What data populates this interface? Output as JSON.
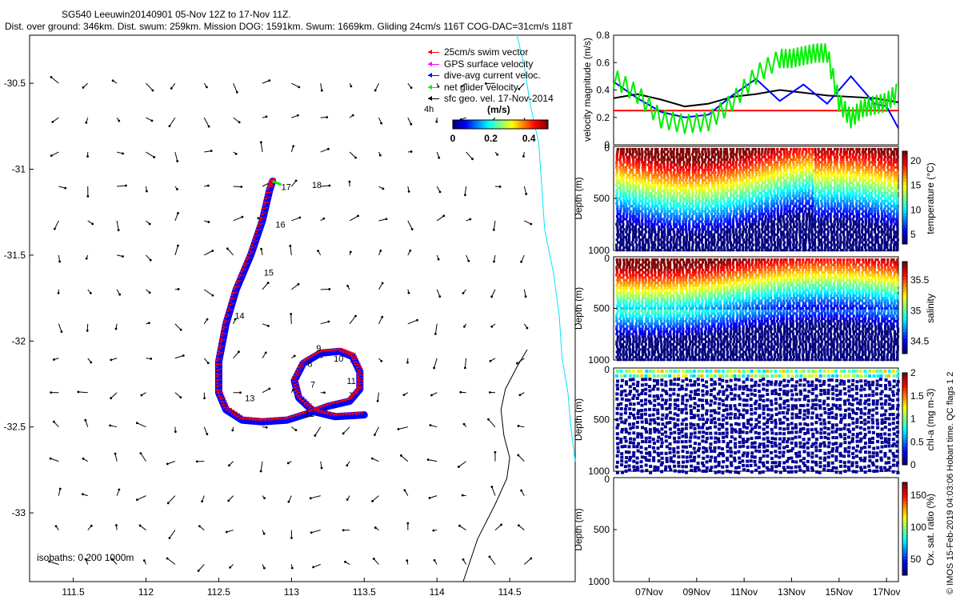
{
  "title": {
    "line1": "SG540 Leeuwin20140901 05-Nov 12Z to 17-Nov 11Z.",
    "line2": "Dist. over ground: 346km. Dist. swum: 259km. Mission DOG: 1591km. Swum: 1669km. Gliding 24cm/s 116T COG-DAC=31cm/s 118T"
  },
  "side_note": "© IMOS 15-Feb-2019 04:03:06 Hobart time. QC flags 1  2",
  "colors": {
    "swim": "#ff0000",
    "gps": "#ff00ff",
    "dac": "#0000ff",
    "net": "#00ee00",
    "geo": "#000000",
    "coast": "#00e5ff",
    "isobath": "#000000"
  },
  "chart_data": [
    {
      "type": "scatter",
      "panel": "map",
      "xlim": [
        111.2,
        114.95
      ],
      "ylim": [
        -33.4,
        -30.22
      ],
      "xticks": [
        "111.5",
        "112",
        "112.5",
        "113",
        "113.5",
        "114",
        "114.5"
      ],
      "yticks": [
        "-30.5",
        "-31",
        "-31.5",
        "-32",
        "-32.5",
        "-33"
      ],
      "legend": {
        "placement": "top-right",
        "entries": [
          "25cm/s swim vector",
          "GPS surface velocity",
          "dive-avg current veloc.",
          "net glider velocity",
          "sfc geo. vel. 17-Nov-2014"
        ]
      },
      "colorbar": {
        "label_left": "4h",
        "unit": "(m/s)",
        "ticks": [
          "0",
          "0.2",
          "0.4"
        ],
        "range": [
          0,
          0.5
        ]
      },
      "isobath_note": "isobaths: 0   200  1000m",
      "track": {
        "lon": [
          112.87,
          112.85,
          112.8,
          112.72,
          112.62,
          112.55,
          112.5,
          112.5,
          112.55,
          112.66,
          112.8,
          112.97,
          113.12,
          113.25,
          113.4,
          113.47,
          113.47,
          113.42,
          113.33,
          113.2,
          113.08,
          113.02,
          113.05,
          113.15,
          113.3,
          113.5
        ],
        "lat": [
          -31.07,
          -31.12,
          -31.3,
          -31.5,
          -31.7,
          -31.9,
          -32.12,
          -32.3,
          -32.4,
          -32.46,
          -32.47,
          -32.46,
          -32.42,
          -32.38,
          -32.35,
          -32.28,
          -32.18,
          -32.09,
          -32.06,
          -32.07,
          -32.13,
          -32.23,
          -32.33,
          -32.41,
          -32.44,
          -32.43
        ]
      },
      "day_labels": [
        {
          "label": "17",
          "lon": 112.93,
          "lat": -31.12
        },
        {
          "label": "18",
          "lon": 113.14,
          "lat": -31.11
        },
        {
          "label": "16",
          "lon": 112.89,
          "lat": -31.34
        },
        {
          "label": "15",
          "lon": 112.81,
          "lat": -31.62
        },
        {
          "label": "14",
          "lon": 112.61,
          "lat": -31.87
        },
        {
          "label": "13",
          "lon": 112.68,
          "lat": -32.35
        },
        {
          "label": "12",
          "lon": 113.09,
          "lat": -32.44
        },
        {
          "label": "11",
          "lon": 113.38,
          "lat": -32.25
        },
        {
          "label": "10",
          "lon": 113.29,
          "lat": -32.12
        },
        {
          "label": "9",
          "lon": 113.17,
          "lat": -32.06
        },
        {
          "label": "8",
          "lon": 113.11,
          "lat": -32.15
        },
        {
          "label": "7",
          "lon": 113.13,
          "lat": -32.27
        }
      ],
      "coast": {
        "lon": [
          114.55,
          114.6,
          114.64,
          114.7,
          114.72,
          114.74,
          114.8,
          114.84,
          114.86,
          114.9,
          114.92,
          114.95
        ],
        "lat": [
          -30.22,
          -30.4,
          -30.62,
          -30.85,
          -31.1,
          -31.35,
          -31.6,
          -31.85,
          -32.1,
          -32.3,
          -32.5,
          -32.7
        ]
      },
      "isobath": {
        "lon": [
          114.18,
          114.28,
          114.4,
          114.48,
          114.5,
          114.46,
          114.44,
          114.47,
          114.55,
          114.62
        ],
        "lat": [
          -33.4,
          -33.15,
          -32.95,
          -32.8,
          -32.68,
          -32.55,
          -32.4,
          -32.28,
          -32.15,
          -32.05
        ]
      }
    },
    {
      "type": "line",
      "panel": "velocity",
      "ylabel": "velocity magnitude (m/s)",
      "ylim": [
        0,
        0.8
      ],
      "xlim": [
        5.5,
        17.5
      ],
      "yticks": [
        "0",
        "0.2",
        "0.4",
        "0.6",
        "0.8"
      ],
      "series": [
        {
          "color": "#ff0000",
          "x": [
            5.5,
            17.5
          ],
          "values": [
            0.25,
            0.25
          ]
        },
        {
          "color": "#000000",
          "x": [
            5.5,
            6.5,
            7.5,
            8.5,
            9.5,
            10.5,
            11.5,
            12.5,
            13.5,
            14.5,
            15.5,
            16.5,
            17.5
          ],
          "values": [
            0.34,
            0.37,
            0.33,
            0.28,
            0.3,
            0.35,
            0.37,
            0.4,
            0.38,
            0.36,
            0.35,
            0.34,
            0.31
          ]
        },
        {
          "color": "#0000ff",
          "x": [
            5.5,
            6.5,
            7.5,
            8.5,
            9.5,
            10.5,
            11.5,
            12.5,
            13.5,
            14.5,
            15.5,
            16.5,
            17.0,
            17.5
          ],
          "values": [
            0.46,
            0.34,
            0.24,
            0.2,
            0.22,
            0.36,
            0.48,
            0.32,
            0.44,
            0.3,
            0.5,
            0.3,
            0.28,
            0.12
          ]
        },
        {
          "color": "#00ee00",
          "x": [
            5.5,
            6.5,
            7.5,
            8.5,
            9.5,
            10.5,
            11.5,
            12.5,
            13.0,
            13.5,
            14.0,
            14.5,
            15.0,
            15.5,
            16.0,
            16.5,
            17.0,
            17.5
          ],
          "values": [
            0.48,
            0.36,
            0.18,
            0.14,
            0.16,
            0.3,
            0.5,
            0.62,
            0.62,
            0.64,
            0.66,
            0.66,
            0.3,
            0.18,
            0.26,
            0.28,
            0.3,
            0.38
          ]
        }
      ]
    },
    {
      "type": "heatmap",
      "panel": "temperature",
      "ylabel": "Depth (m)",
      "cbar_label": "temperature (°C)",
      "ylim": [
        0,
        1000
      ],
      "yticks": [
        "0",
        "500",
        "1000"
      ],
      "cbar_ticks": [
        "20",
        "15",
        "10",
        "5"
      ],
      "crange": [
        3,
        22
      ]
    },
    {
      "type": "heatmap",
      "panel": "salinity",
      "ylabel": "Depth (m)",
      "cbar_label": "salinity",
      "ylim": [
        0,
        1000
      ],
      "yticks": [
        "0",
        "500",
        "1000"
      ],
      "cbar_ticks": [
        "35.5",
        "35",
        "34.5"
      ],
      "crange": [
        34.3,
        35.8
      ]
    },
    {
      "type": "heatmap",
      "panel": "chla",
      "ylabel": "Depth (m)",
      "cbar_label": "chl-a (mg m-3)",
      "ylim": [
        0,
        1000
      ],
      "yticks": [
        "0",
        "500",
        "1000"
      ],
      "cbar_ticks": [
        "2",
        "1.5",
        "1",
        "0.5",
        "0"
      ],
      "crange": [
        0,
        2
      ]
    },
    {
      "type": "heatmap",
      "panel": "oxygen",
      "ylabel": "Depth (m)",
      "cbar_label": "Ox. sat. ratio (%)",
      "ylim": [
        0,
        1000
      ],
      "yticks": [
        "0",
        "500",
        "1000"
      ],
      "cbar_ticks": [
        "150",
        "100",
        "50"
      ],
      "crange": [
        25,
        170
      ],
      "xticks": [
        "07Nov",
        "09Nov",
        "11Nov",
        "13Nov",
        "15Nov",
        "17Nov"
      ]
    }
  ]
}
